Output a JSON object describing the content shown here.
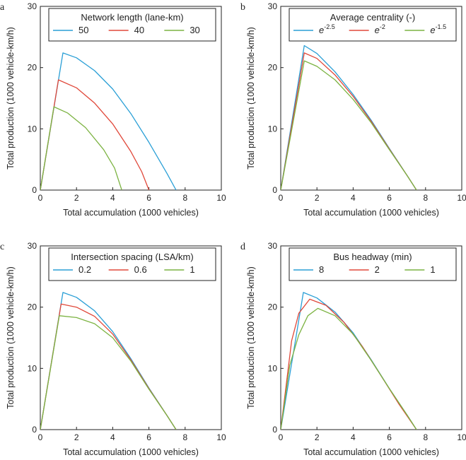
{
  "chart_data": [
    {
      "type": "line",
      "panel_label": "a",
      "legend_title": "Network length (lane-km)",
      "xlabel": "Total accumulation (1000 vehicles)",
      "ylabel": "Total production (1000 vehicle-km/h)",
      "xlim": [
        0,
        10
      ],
      "ylim": [
        0,
        30
      ],
      "xticks": [
        "0",
        "2",
        "4",
        "6",
        "8",
        "10"
      ],
      "yticks": [
        "0",
        "10",
        "20",
        "30"
      ],
      "series": [
        {
          "name": "50",
          "color": "#2a9fd6",
          "points": [
            [
              0,
              0
            ],
            [
              1.25,
              22.4
            ],
            [
              2,
              21.6
            ],
            [
              3,
              19.5
            ],
            [
              4,
              16.5
            ],
            [
              5,
              12.5
            ],
            [
              6,
              7.8
            ],
            [
              7,
              2.7
            ],
            [
              7.5,
              0
            ]
          ]
        },
        {
          "name": "40",
          "color": "#e0483a",
          "points": [
            [
              0,
              0
            ],
            [
              1.0,
              18.0
            ],
            [
              2,
              16.7
            ],
            [
              3,
              14.2
            ],
            [
              4,
              10.8
            ],
            [
              5,
              6.3
            ],
            [
              5.6,
              3.0
            ],
            [
              6,
              0
            ]
          ]
        },
        {
          "name": "30",
          "color": "#7cb342",
          "points": [
            [
              0,
              0
            ],
            [
              0.75,
              13.6
            ],
            [
              1.5,
              12.6
            ],
            [
              2.5,
              10.2
            ],
            [
              3.5,
              6.6
            ],
            [
              4.1,
              3.6
            ],
            [
              4.5,
              0
            ]
          ]
        }
      ]
    },
    {
      "type": "line",
      "panel_label": "b",
      "legend_title": "Average centrality (-)",
      "xlabel": "Total accumulation (1000 vehicles)",
      "ylabel": "Total production (1000 vehicle-km/h)",
      "xlim": [
        0,
        10
      ],
      "ylim": [
        0,
        30
      ],
      "xticks": [
        "0",
        "2",
        "4",
        "6",
        "8",
        "10"
      ],
      "yticks": [
        "0",
        "10",
        "20",
        "30"
      ],
      "series": [
        {
          "name": "e",
          "sup": "-2.5",
          "color": "#2a9fd6",
          "points": [
            [
              0,
              0
            ],
            [
              1.3,
              23.6
            ],
            [
              2,
              22.3
            ],
            [
              3,
              19.3
            ],
            [
              4,
              15.6
            ],
            [
              5,
              11.4
            ],
            [
              6,
              6.8
            ],
            [
              7,
              2.3
            ],
            [
              7.5,
              0
            ]
          ]
        },
        {
          "name": "e",
          "sup": "-2",
          "color": "#e0483a",
          "points": [
            [
              0,
              0
            ],
            [
              1.3,
              22.4
            ],
            [
              2,
              21.5
            ],
            [
              3,
              18.8
            ],
            [
              4,
              15.3
            ],
            [
              5,
              11.2
            ],
            [
              6,
              6.7
            ],
            [
              7,
              2.3
            ],
            [
              7.5,
              0
            ]
          ]
        },
        {
          "name": "e",
          "sup": "-1.5",
          "color": "#7cb342",
          "points": [
            [
              0,
              0
            ],
            [
              1.3,
              21.1
            ],
            [
              2,
              20.2
            ],
            [
              3,
              18.0
            ],
            [
              4,
              14.8
            ],
            [
              5,
              11.0
            ],
            [
              6,
              6.6
            ],
            [
              7,
              2.3
            ],
            [
              7.5,
              0
            ]
          ]
        }
      ]
    },
    {
      "type": "line",
      "panel_label": "c",
      "legend_title": "Intersection spacing (LSA/km)",
      "xlabel": "Total accumulation (1000 vehicles)",
      "ylabel": "Total production (1000 vehicle-km/h)",
      "xlim": [
        0,
        10
      ],
      "ylim": [
        0,
        30
      ],
      "xticks": [
        "0",
        "2",
        "4",
        "6",
        "8",
        "10"
      ],
      "yticks": [
        "0",
        "10",
        "20",
        "30"
      ],
      "series": [
        {
          "name": "0.2",
          "color": "#2a9fd6",
          "points": [
            [
              0,
              0
            ],
            [
              1.25,
              22.4
            ],
            [
              2,
              21.6
            ],
            [
              3,
              19.4
            ],
            [
              4,
              16.0
            ],
            [
              5,
              11.6
            ],
            [
              6,
              6.8
            ],
            [
              7,
              2.3
            ],
            [
              7.5,
              0
            ]
          ]
        },
        {
          "name": "0.6",
          "color": "#e0483a",
          "points": [
            [
              0,
              0
            ],
            [
              1.15,
              20.5
            ],
            [
              2,
              20.0
            ],
            [
              3,
              18.5
            ],
            [
              4,
              15.6
            ],
            [
              5,
              11.4
            ],
            [
              6,
              6.7
            ],
            [
              7,
              2.3
            ],
            [
              7.5,
              0
            ]
          ]
        },
        {
          "name": "1",
          "color": "#7cb342",
          "points": [
            [
              0,
              0
            ],
            [
              1.05,
              18.6
            ],
            [
              2,
              18.3
            ],
            [
              3,
              17.3
            ],
            [
              4,
              15.0
            ],
            [
              5,
              11.2
            ],
            [
              6,
              6.6
            ],
            [
              7,
              2.3
            ],
            [
              7.5,
              0
            ]
          ]
        }
      ]
    },
    {
      "type": "line",
      "panel_label": "d",
      "legend_title": "Bus headway (min)",
      "xlabel": "Total accumulation (1000 vehicles)",
      "ylabel": "Total production (1000 vehicle-km/h)",
      "xlim": [
        0,
        10
      ],
      "ylim": [
        0,
        30
      ],
      "xticks": [
        "0",
        "2",
        "4",
        "6",
        "8",
        "10"
      ],
      "yticks": [
        "0",
        "10",
        "20",
        "30"
      ],
      "series": [
        {
          "name": "8",
          "color": "#2a9fd6",
          "points": [
            [
              0,
              0
            ],
            [
              1.25,
              22.4
            ],
            [
              2,
              21.5
            ],
            [
              3,
              19.2
            ],
            [
              4,
              15.8
            ],
            [
              5,
              11.4
            ],
            [
              6,
              6.7
            ],
            [
              7,
              2.3
            ],
            [
              7.5,
              0
            ]
          ]
        },
        {
          "name": "2",
          "color": "#e0483a",
          "points": [
            [
              0,
              0
            ],
            [
              0.6,
              14.5
            ],
            [
              1.0,
              19.0
            ],
            [
              1.6,
              21.3
            ],
            [
              2.5,
              20.3
            ],
            [
              3.5,
              17.5
            ],
            [
              4.5,
              13.6
            ],
            [
              5.5,
              9.0
            ],
            [
              6.5,
              4.3
            ],
            [
              7.5,
              0
            ]
          ]
        },
        {
          "name": "1",
          "color": "#7cb342",
          "points": [
            [
              0,
              0
            ],
            [
              0.5,
              10.5
            ],
            [
              1.0,
              15.5
            ],
            [
              1.5,
              18.6
            ],
            [
              2.05,
              19.8
            ],
            [
              3,
              18.6
            ],
            [
              4,
              15.6
            ],
            [
              5,
              11.3
            ],
            [
              6,
              6.7
            ],
            [
              7,
              2.3
            ],
            [
              7.5,
              0
            ]
          ]
        }
      ]
    }
  ]
}
